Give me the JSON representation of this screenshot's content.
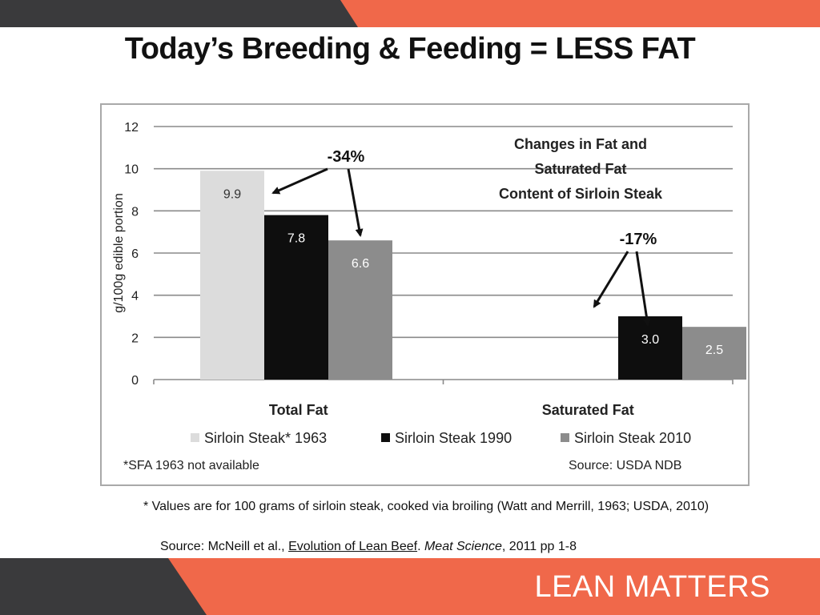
{
  "slide": {
    "title": "Today’s Breeding & Feeding = LESS FAT",
    "footnote": "* Values are for 100 grams of sirloin steak, cooked via broiling (Watt and Merrill, 1963; USDA, 2010)",
    "citation": {
      "prefix": "Source: McNeill et al., ",
      "link_text": "Evolution of Lean Beef",
      "middle": ". ",
      "journal": "Meat Science",
      "suffix": ", 2011 pp 1-8"
    },
    "brand": "LEAN MATTERS",
    "colors": {
      "accent": "#f0684a",
      "dark": "#3a3a3c"
    }
  },
  "chart_data": {
    "type": "bar",
    "title": "Changes in Fat and Saturated Fat Content of Sirloin Steak",
    "title_lines": [
      "Changes in Fat and",
      "Saturated Fat",
      "Content of Sirloin Steak"
    ],
    "ylabel": "g/100g edible portion",
    "ylim": [
      0,
      12
    ],
    "yticks": [
      0,
      2,
      4,
      6,
      8,
      10,
      12
    ],
    "grid": true,
    "legend_position": "bottom",
    "categories": [
      "Total Fat",
      "Saturated Fat"
    ],
    "series": [
      {
        "name": "Sirloin Steak* 1963",
        "color": "#dcdcdc",
        "label_color": "#333333",
        "values": [
          9.9,
          null
        ],
        "labels": [
          "9.9",
          ""
        ]
      },
      {
        "name": "Sirloin Steak 1990",
        "color": "#0e0e0e",
        "label_color": "#ffffff",
        "values": [
          7.8,
          3.0
        ],
        "labels": [
          "7.8",
          "3.0"
        ]
      },
      {
        "name": "Sirloin Steak 2010",
        "color": "#8c8c8c",
        "label_color": "#ffffff",
        "values": [
          6.6,
          2.5
        ],
        "labels": [
          "6.6",
          "2.5"
        ]
      }
    ],
    "annotations": [
      "-34%",
      "-17%"
    ],
    "note_left": "*SFA 1963 not available",
    "note_right": "Source:  USDA NDB"
  }
}
